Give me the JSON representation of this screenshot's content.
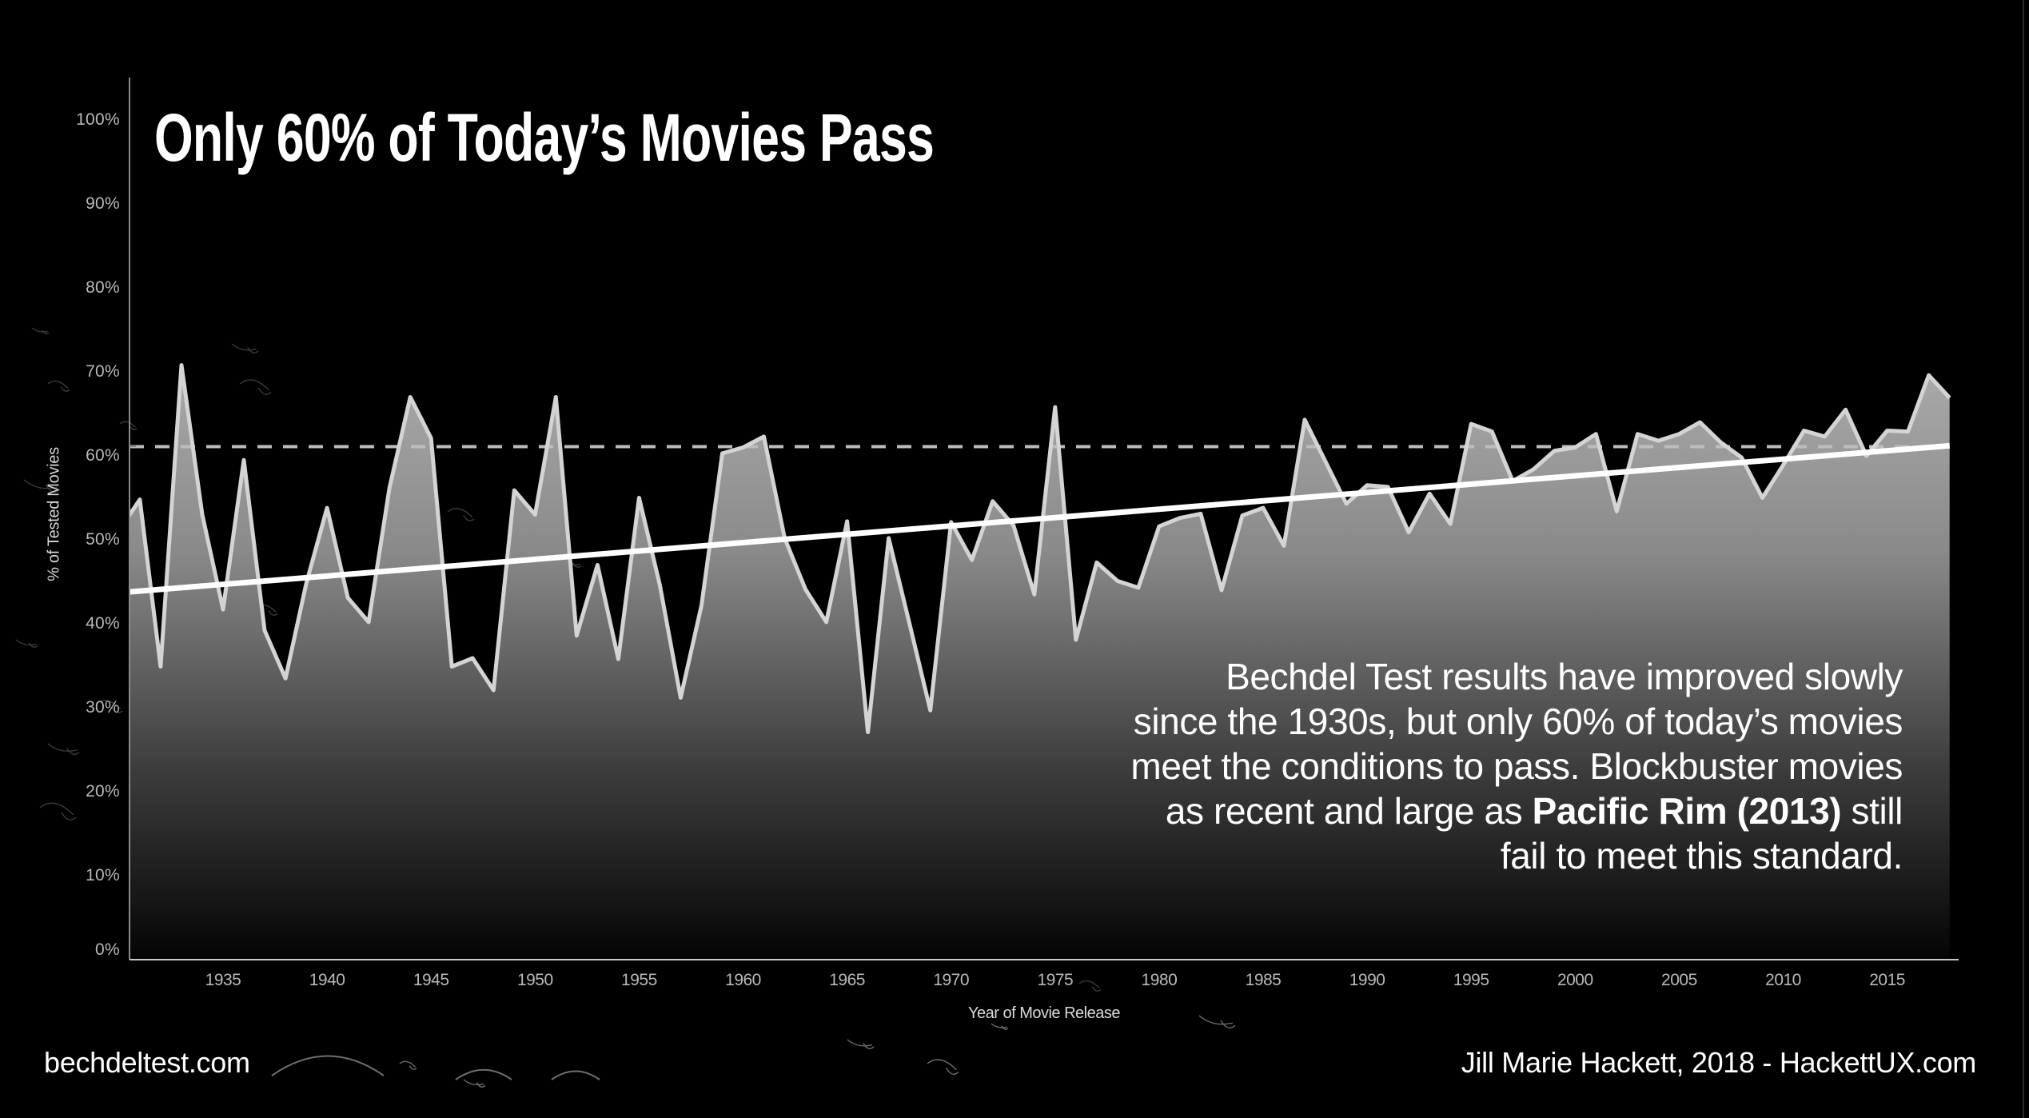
{
  "title": "Only 60% of Today’s Movies Pass",
  "annotation": {
    "lines": [
      "Bechdel Test results have improved slowly",
      "since the 1930s, but only 60% of today’s movies",
      "meet the conditions to pass. Blockbuster movies"
    ],
    "line4_prefix": "as recent and large as ",
    "line4_bold": "Pacific Rim (2013)",
    "line4_suffix": " still",
    "line5": "fail to meet this standard."
  },
  "footer": {
    "source": "bechdeltest.com",
    "credit": "Jill Marie Hackett, 2018 - HackettUX.com"
  },
  "colors": {
    "background": "#000000",
    "line": "#d4d4d4",
    "trend": "#ffffff",
    "reference": "#bdbdbd",
    "fill_top": "#a6a6a6",
    "fill_bottom": "#050505",
    "axis": "#8a8a8a",
    "tick_text": "#b9b9b9"
  },
  "chart_data": {
    "type": "area",
    "title": "Only 60% of Today’s Movies Pass",
    "xlabel": "Year of Movie Release",
    "ylabel": "% of Tested Movies",
    "ylim": [
      0,
      100
    ],
    "xlim": [
      1930.5,
      2018
    ],
    "grid": false,
    "legend": "none",
    "y_ticks": [
      "0%",
      "10%",
      "20%",
      "30%",
      "40%",
      "50%",
      "60%",
      "70%",
      "80%",
      "90%",
      "100%"
    ],
    "x_ticks": [
      "1935",
      "1940",
      "1945",
      "1950",
      "1955",
      "1960",
      "1965",
      "1970",
      "1975",
      "1980",
      "1985",
      "1990",
      "1995",
      "2000",
      "2005",
      "2010",
      "2015"
    ],
    "x": [
      1930,
      1931,
      1932,
      1933,
      1934,
      1935,
      1936,
      1937,
      1938,
      1939,
      1940,
      1941,
      1942,
      1943,
      1944,
      1945,
      1946,
      1947,
      1948,
      1949,
      1950,
      1951,
      1952,
      1953,
      1954,
      1955,
      1956,
      1957,
      1958,
      1959,
      1960,
      1961,
      1962,
      1963,
      1964,
      1965,
      1966,
      1967,
      1968,
      1969,
      1970,
      1971,
      1972,
      1973,
      1974,
      1975,
      1976,
      1977,
      1978,
      1979,
      1980,
      1981,
      1982,
      1983,
      1984,
      1985,
      1986,
      1987,
      1988,
      1989,
      1990,
      1991,
      1992,
      1993,
      1994,
      1995,
      1996,
      1997,
      1998,
      1999,
      2000,
      2001,
      2002,
      2003,
      2004,
      2005,
      2006,
      2007,
      2008,
      2009,
      2010,
      2011,
      2012,
      2013,
      2014,
      2015,
      2016,
      2017,
      2018
    ],
    "series": [
      {
        "name": "% of Tested Movies Passing",
        "values": [
          51.1,
          54.8,
          34.9,
          70.8,
          53.0,
          41.7,
          59.5,
          39.2,
          33.5,
          44.8,
          53.8,
          43.1,
          40.2,
          56.2,
          67.0,
          62.1,
          34.9,
          35.9,
          32.1,
          55.9,
          53.0,
          67.0,
          38.6,
          47.0,
          35.8,
          55.0,
          44.6,
          31.2,
          42.2,
          60.3,
          61.0,
          62.3,
          50.2,
          44.1,
          40.2,
          52.2,
          27.1,
          50.2,
          40.0,
          29.7,
          52.1,
          47.6,
          54.6,
          51.7,
          43.5,
          65.8,
          38.1,
          47.3,
          45.1,
          44.3,
          51.6,
          52.6,
          53.1,
          44.0,
          52.9,
          53.8,
          49.3,
          64.3,
          59.3,
          54.3,
          56.5,
          56.3,
          50.9,
          55.5,
          51.9,
          63.8,
          62.9,
          57.0,
          58.4,
          60.6,
          61.0,
          62.6,
          53.4,
          62.6,
          61.8,
          62.6,
          64.0,
          61.6,
          59.8,
          55.0,
          58.9,
          63.0,
          62.3,
          65.5,
          60.0,
          63.0,
          62.9,
          69.6,
          66.9
        ]
      }
    ],
    "trend_line": {
      "start": [
        1930.5,
        43.8
      ],
      "end": [
        2018,
        61.2
      ]
    },
    "reference_line": {
      "value": 61.1,
      "style": "dashed"
    },
    "annotations": [
      "Bechdel Test results have improved slowly since the 1930s, but only 60% of today’s movies meet the conditions to pass. Blockbuster movies as recent and large as Pacific Rim (2013) still fail to meet this standard."
    ]
  }
}
